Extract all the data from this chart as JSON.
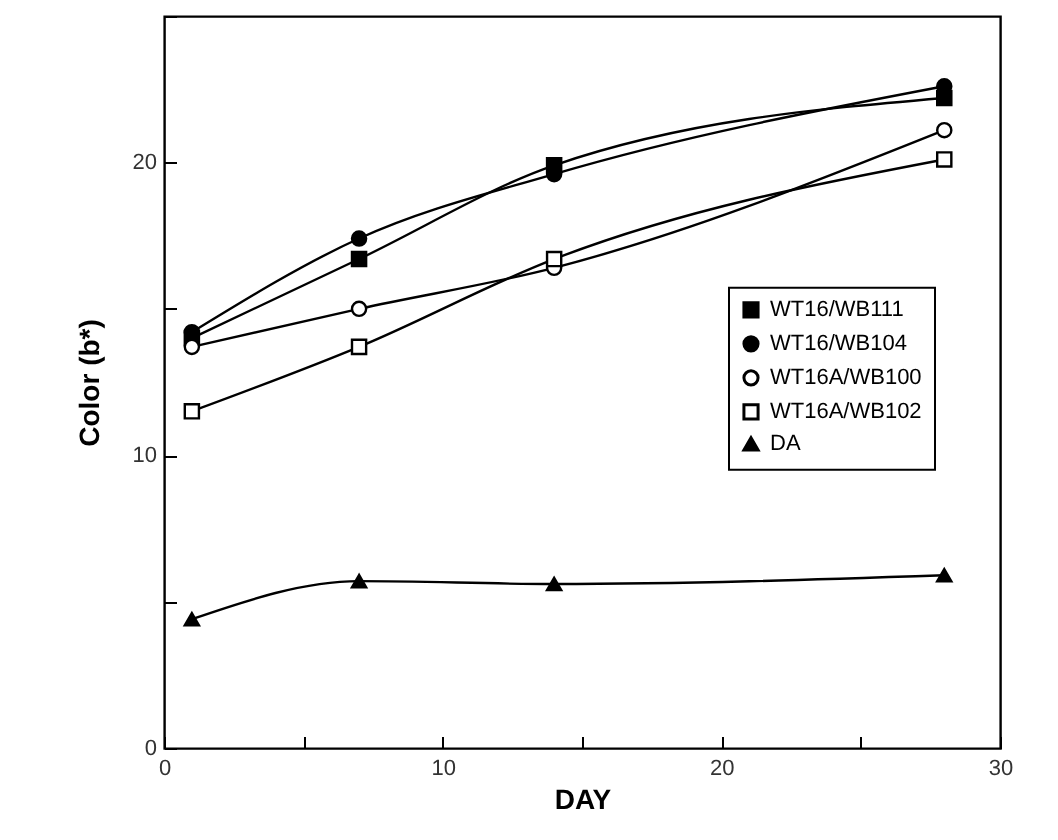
{
  "chart_data": {
    "type": "line",
    "xlabel": "DAY",
    "ylabel": "Color (b*)",
    "x": [
      1,
      7,
      14,
      28
    ],
    "series": [
      {
        "name": "WT16/WB111",
        "color": "#000000",
        "marker": "square",
        "values": [
          14.0,
          16.7,
          19.9,
          22.2
        ]
      },
      {
        "name": "WT16/WB104",
        "color": "#000000",
        "marker": "circle",
        "values": [
          14.2,
          17.4,
          19.6,
          22.6
        ]
      },
      {
        "name": "WT16A/WB100",
        "color": "#000000",
        "marker": "circle-open",
        "values": [
          13.7,
          15.0,
          16.4,
          21.1
        ]
      },
      {
        "name": "WT16A/WB102",
        "color": "#000000",
        "marker": "square-open",
        "values": [
          11.5,
          13.7,
          16.7,
          20.1
        ]
      },
      {
        "name": "DA",
        "color": "#000000",
        "marker": "triangle",
        "values": [
          4.4,
          5.7,
          5.6,
          5.9
        ]
      }
    ],
    "xlim": [
      0,
      30
    ],
    "xticks": [
      0,
      {
        "value": 5,
        "label": null
      },
      10,
      {
        "value": 15,
        "label": null
      },
      20,
      {
        "value": 25,
        "label": null
      },
      30
    ],
    "ylim": [
      0,
      25
    ],
    "yticks": [
      0,
      {
        "value": 5,
        "label": null
      },
      10,
      {
        "value": 15,
        "label": null
      },
      20,
      {
        "value": 25,
        "label": null
      }
    ],
    "grid": false,
    "legend": "right"
  }
}
